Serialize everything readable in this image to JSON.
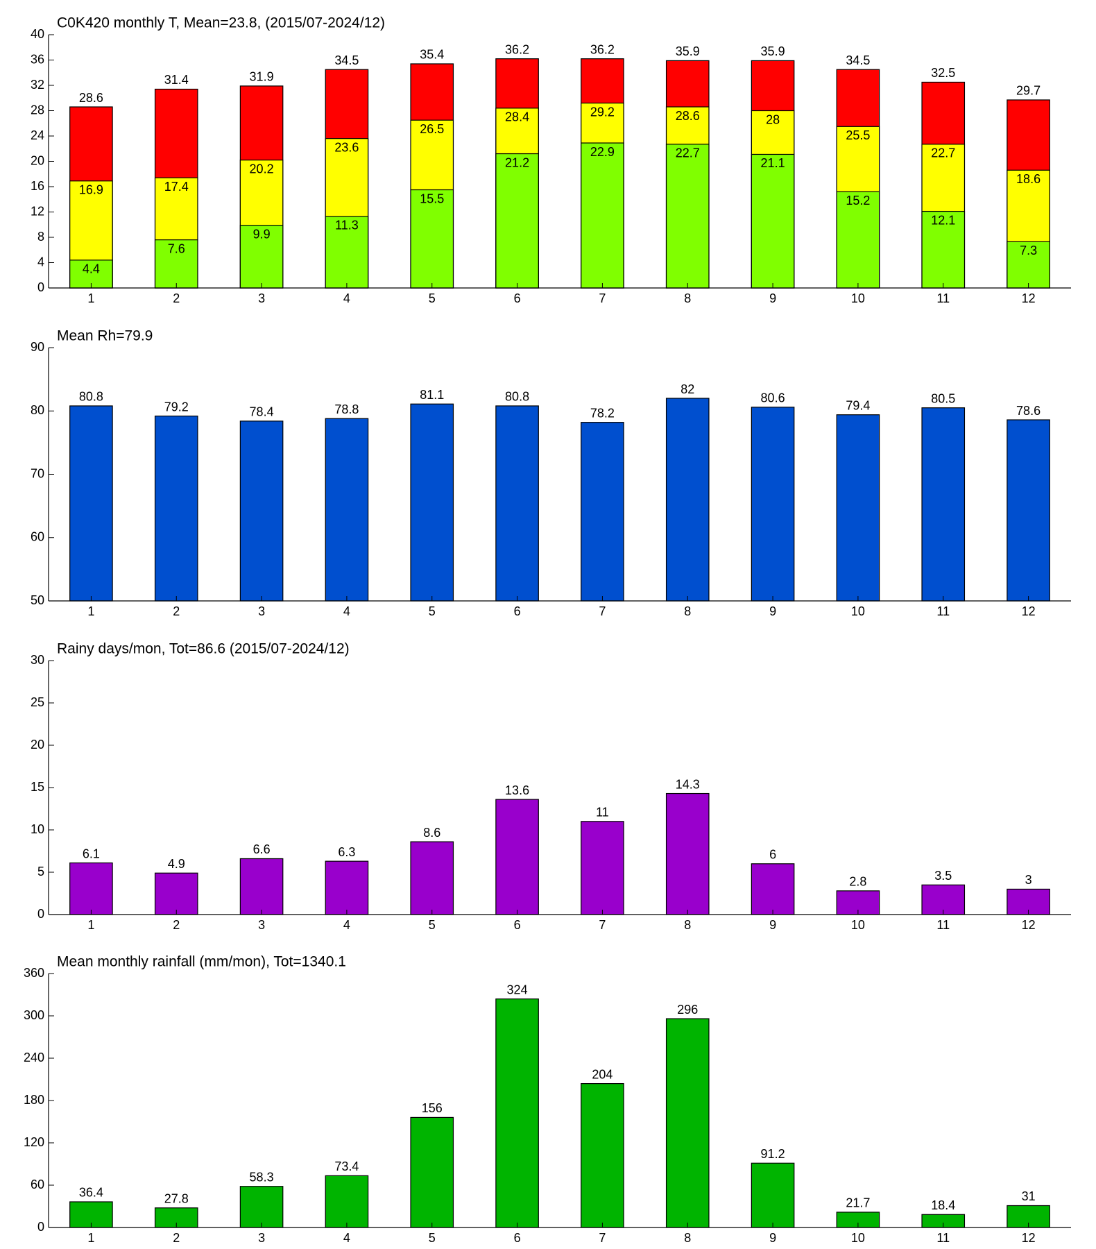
{
  "chart_data": [
    {
      "type": "bar",
      "title": "C0K420 monthly T, Mean=23.8, (2015/07-2024/12)",
      "categories": [
        "1",
        "2",
        "3",
        "4",
        "5",
        "6",
        "7",
        "8",
        "9",
        "10",
        "11",
        "12"
      ],
      "series": [
        {
          "color": "#ff0000",
          "values": [
            28.6,
            31.4,
            31.9,
            34.5,
            35.4,
            36.2,
            36.2,
            35.9,
            35.9,
            34.5,
            32.5,
            29.7
          ]
        },
        {
          "color": "#ffff00",
          "values": [
            16.9,
            17.4,
            20.2,
            23.6,
            26.5,
            28.4,
            29.2,
            28.6,
            28,
            25.5,
            22.7,
            18.6
          ]
        },
        {
          "color": "#80ff00",
          "values": [
            4.4,
            7.6,
            9.9,
            11.3,
            15.5,
            21.2,
            22.9,
            22.7,
            21.1,
            15.2,
            12.1,
            7.3
          ]
        }
      ],
      "ylim": [
        0,
        40
      ],
      "yticks": [
        0,
        4,
        8,
        12,
        16,
        20,
        24,
        28,
        32,
        36,
        40
      ]
    },
    {
      "type": "bar",
      "title": "Mean Rh=79.9",
      "categories": [
        "1",
        "2",
        "3",
        "4",
        "5",
        "6",
        "7",
        "8",
        "9",
        "10",
        "11",
        "12"
      ],
      "series": [
        {
          "color": "#004fcf",
          "values": [
            80.8,
            79.2,
            78.4,
            78.8,
            81.1,
            80.8,
            78.2,
            82,
            80.6,
            79.4,
            80.5,
            78.6
          ]
        }
      ],
      "ylim": [
        50,
        90
      ],
      "yticks": [
        50,
        60,
        70,
        80,
        90
      ]
    },
    {
      "type": "bar",
      "title": "Rainy days/mon, Tot=86.6 (2015/07-2024/12)",
      "categories": [
        "1",
        "2",
        "3",
        "4",
        "5",
        "6",
        "7",
        "8",
        "9",
        "10",
        "11",
        "12"
      ],
      "series": [
        {
          "color": "#9900cc",
          "values": [
            6.1,
            4.9,
            6.6,
            6.3,
            8.6,
            13.6,
            11,
            14.3,
            6,
            2.8,
            3.5,
            3
          ]
        }
      ],
      "ylim": [
        0,
        30
      ],
      "yticks": [
        0,
        5,
        10,
        15,
        20,
        25,
        30
      ]
    },
    {
      "type": "bar",
      "title": "Mean monthly rainfall (mm/mon), Tot=1340.1",
      "categories": [
        "1",
        "2",
        "3",
        "4",
        "5",
        "6",
        "7",
        "8",
        "9",
        "10",
        "11",
        "12"
      ],
      "series": [
        {
          "color": "#00b400",
          "values": [
            36.4,
            27.8,
            58.3,
            73.4,
            156,
            324,
            204,
            296,
            91.2,
            21.7,
            18.4,
            31
          ]
        }
      ],
      "ylim": [
        0,
        360
      ],
      "yticks": [
        0,
        60,
        120,
        180,
        240,
        300,
        360
      ]
    }
  ]
}
